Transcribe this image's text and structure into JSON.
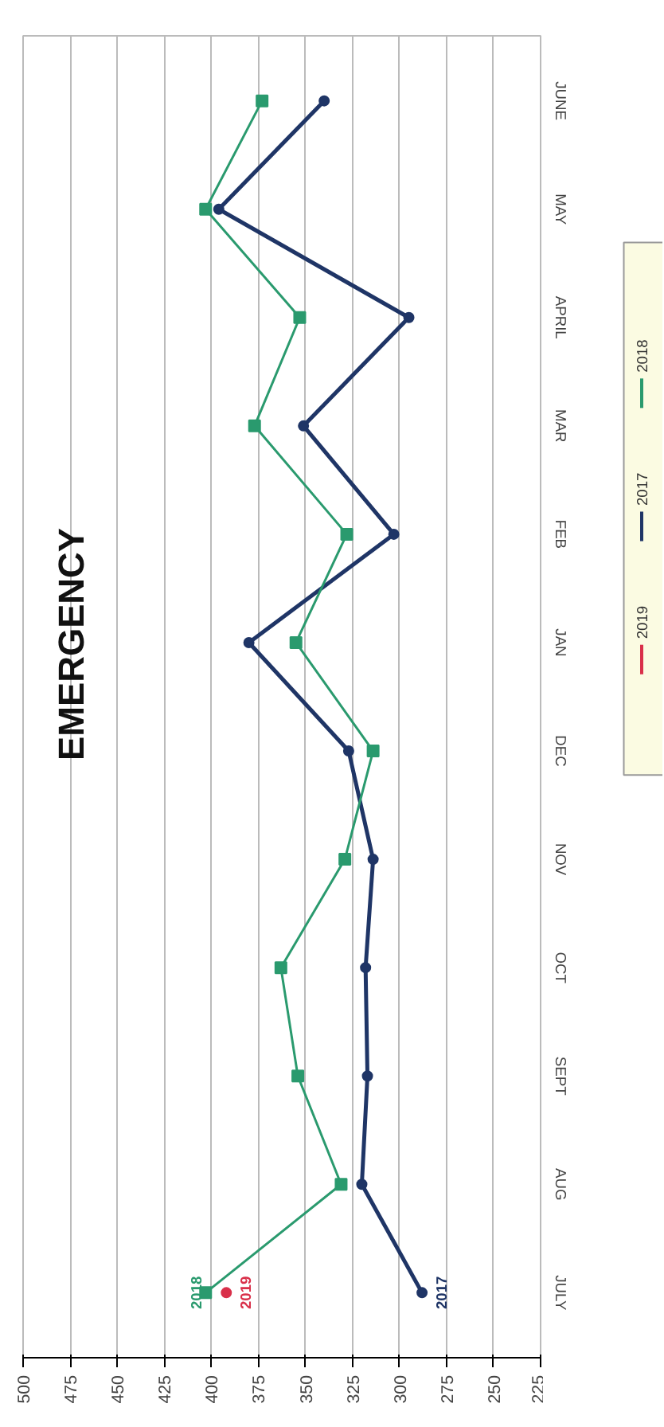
{
  "chart_data": {
    "type": "line",
    "title": "EMERGENCY",
    "orientation": "horizontal",
    "categories": [
      "JUNE",
      "MAY",
      "APRIL",
      "MAR",
      "FEB",
      "JAN",
      "DEC",
      "NOV",
      "OCT",
      "SEPT",
      "AUG",
      "JULY"
    ],
    "series": [
      {
        "name": "2019",
        "color": "#d9304a",
        "marker": "circle",
        "values": [
          null,
          null,
          null,
          null,
          null,
          null,
          null,
          null,
          null,
          null,
          null,
          392
        ]
      },
      {
        "name": "2017",
        "color": "#1f3566",
        "marker": "circle",
        "values": [
          340,
          396,
          295,
          351,
          303,
          380,
          327,
          314,
          318,
          317,
          320,
          288
        ]
      },
      {
        "name": "2018",
        "color": "#2a9a6e",
        "marker": "square",
        "values": [
          373,
          403,
          353,
          377,
          328,
          355,
          314,
          329,
          363,
          354,
          331,
          403
        ]
      }
    ],
    "xlim": [
      500,
      225
    ],
    "xticks": [
      500,
      475,
      450,
      425,
      400,
      375,
      350,
      325,
      300,
      275,
      250,
      225
    ],
    "grid": "x",
    "legend": "right"
  }
}
